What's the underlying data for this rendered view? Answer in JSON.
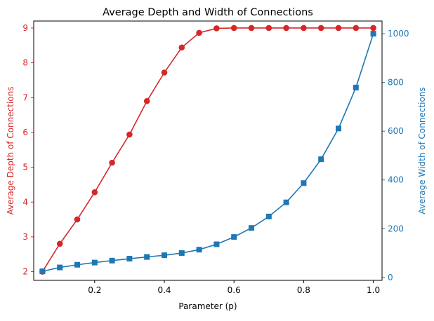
{
  "chart_data": {
    "type": "line",
    "title": "Average Depth and Width of Connections",
    "xlabel": "Parameter (p)",
    "ylabel_left": "Average Depth of Connections",
    "ylabel_right": "Average Width of Connections",
    "xlim": [
      0.025,
      1.025
    ],
    "ylim_left": [
      1.75,
      9.2
    ],
    "ylim_right": [
      -12,
      1052
    ],
    "xticks": [
      0.2,
      0.4,
      0.6,
      0.8,
      1.0
    ],
    "xtick_labels": [
      "0.2",
      "0.4",
      "0.6",
      "0.8",
      "1.0"
    ],
    "yticks_left": [
      2,
      3,
      4,
      5,
      6,
      7,
      8,
      9
    ],
    "ytick_labels_left": [
      "2",
      "3",
      "4",
      "5",
      "6",
      "7",
      "8",
      "9"
    ],
    "yticks_right": [
      0,
      200,
      400,
      600,
      800,
      1000
    ],
    "ytick_labels_right": [
      "0",
      "200",
      "400",
      "600",
      "800",
      "1000"
    ],
    "grid": false,
    "colors": {
      "left": "#d62728",
      "right": "#1f77b4"
    },
    "x": [
      0.05,
      0.1,
      0.15,
      0.2,
      0.25,
      0.3,
      0.35,
      0.4,
      0.45,
      0.5,
      0.55,
      0.6,
      0.65,
      0.7,
      0.75,
      0.8,
      0.85,
      0.9,
      0.95,
      1.0
    ],
    "series": [
      {
        "axis": "left",
        "marker": "circle",
        "values": [
          2.0,
          2.8,
          3.5,
          4.28,
          5.13,
          5.94,
          6.9,
          7.72,
          8.44,
          8.86,
          8.99,
          9.0,
          9.0,
          9.0,
          9.0,
          9.0,
          9.0,
          9.0,
          9.0,
          9.0
        ]
      },
      {
        "axis": "right",
        "marker": "square",
        "values": [
          25,
          41,
          52,
          61,
          69,
          77,
          84,
          91,
          100,
          114,
          136,
          166,
          203,
          250,
          308,
          387,
          485,
          611,
          779,
          1000
        ]
      }
    ]
  }
}
